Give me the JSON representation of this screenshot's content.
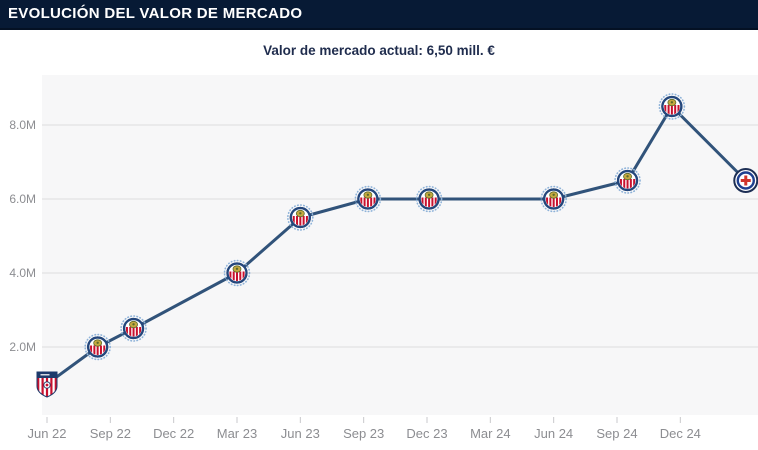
{
  "header": {
    "title": "EVOLUCIÓN DEL VALOR DE MERCADO"
  },
  "subtitle": {
    "text": "Valor de mercado actual: 6,50 mill. €"
  },
  "chart_data": {
    "type": "line",
    "title": "Evolución del valor de mercado",
    "xlabel": "",
    "ylabel": "",
    "value_unit": "mill. €",
    "ylim": [
      0,
      9.35
    ],
    "grid": true,
    "legend": "none",
    "y_axis": {
      "ticks": [
        {
          "value": 2,
          "label": "2.0M"
        },
        {
          "value": 4,
          "label": "4.0M"
        },
        {
          "value": 6,
          "label": "6.0M"
        },
        {
          "value": 8,
          "label": "8.0M"
        }
      ]
    },
    "x_axis": {
      "ticks": [
        {
          "t": 0,
          "label": "Jun 22"
        },
        {
          "t": 3,
          "label": "Sep 22"
        },
        {
          "t": 6,
          "label": "Dec 22"
        },
        {
          "t": 9,
          "label": "Mar 23"
        },
        {
          "t": 12,
          "label": "Jun 23"
        },
        {
          "t": 15,
          "label": "Sep 23"
        },
        {
          "t": 18,
          "label": "Dec 23"
        },
        {
          "t": 21,
          "label": "Mar 24"
        },
        {
          "t": 24,
          "label": "Jun 24"
        },
        {
          "t": 27,
          "label": "Sep 24"
        },
        {
          "t": 30,
          "label": "Dec 24"
        }
      ]
    },
    "points": [
      {
        "t": 0,
        "approx_date": "Jun 22",
        "value_mill": 1.0,
        "club": "CD Tapatío",
        "marker": "tapatio-crest",
        "current": false
      },
      {
        "t": 2.4,
        "approx_date": "Aug 22",
        "value_mill": 2.0,
        "club": "CD Guadalajara",
        "marker": "chivas-crest",
        "current": false
      },
      {
        "t": 4.1,
        "approx_date": "Oct 22",
        "value_mill": 2.5,
        "club": "CD Guadalajara",
        "marker": "chivas-crest",
        "current": false
      },
      {
        "t": 9,
        "approx_date": "Mar 23",
        "value_mill": 4.0,
        "club": "CD Guadalajara",
        "marker": "chivas-crest",
        "current": false
      },
      {
        "t": 12,
        "approx_date": "Jun 23",
        "value_mill": 5.5,
        "club": "CD Guadalajara",
        "marker": "chivas-crest",
        "current": false
      },
      {
        "t": 15.2,
        "approx_date": "Sep 23",
        "value_mill": 6.0,
        "club": "CD Guadalajara",
        "marker": "chivas-crest",
        "current": false
      },
      {
        "t": 18.1,
        "approx_date": "Dec 23",
        "value_mill": 6.0,
        "club": "CD Guadalajara",
        "marker": "chivas-crest",
        "current": false
      },
      {
        "t": 24,
        "approx_date": "Jun 24",
        "value_mill": 6.0,
        "club": "CD Guadalajara",
        "marker": "chivas-crest",
        "current": false
      },
      {
        "t": 27.5,
        "approx_date": "Sep 24",
        "value_mill": 6.5,
        "club": "CD Guadalajara",
        "marker": "chivas-crest",
        "current": false
      },
      {
        "t": 29.6,
        "approx_date": "Nov 24",
        "value_mill": 8.5,
        "club": "CD Guadalajara",
        "marker": "chivas-crest",
        "current": false
      },
      {
        "t": 33.1,
        "approx_date": "Mar 25",
        "value_mill": 6.5,
        "club": "Cruz Azul",
        "marker": "cruz-azul-crest",
        "current": true
      }
    ],
    "colors": {
      "header_bg": "#071a35",
      "header_text": "#ffffff",
      "subtitle_text": "#1f2c4d",
      "plot_bg": "#f7f7f8",
      "grid": "#dcdcde",
      "axis_text": "#8c8d91",
      "tick": "#c8c8cc",
      "line": "#31537a",
      "chivas_ring": "#24477c",
      "chivas_red": "#c8102e",
      "halo": "#8fb3d9",
      "crest_gold": "#c5a93f",
      "crest_green": "#5d6b2a",
      "tapatio_navy": "#1d3a6b",
      "cruz_ring": "#1e3f8f",
      "cruz_red": "#d0342c",
      "highlight_ring": "#1d2f55"
    }
  }
}
